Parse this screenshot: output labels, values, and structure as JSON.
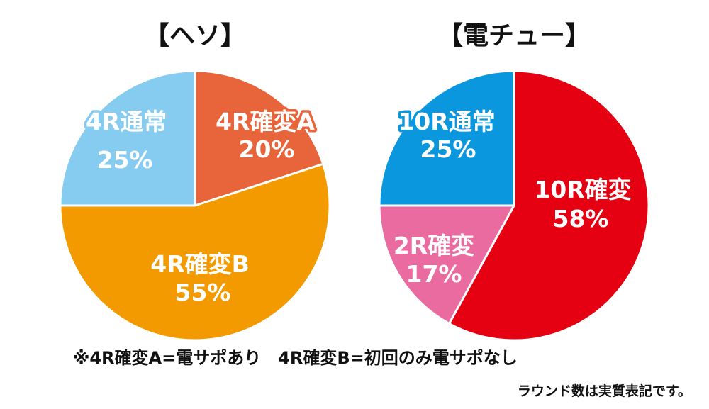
{
  "chart_data": [
    {
      "type": "pie",
      "title": "【ヘソ】",
      "slices": [
        {
          "name": "4R確変A",
          "label": "4R確変A",
          "value": 20,
          "pct_label": "20%",
          "color": "#E8643A",
          "outline": "#E8643A"
        },
        {
          "name": "4R確変B",
          "label": "4R確変B",
          "value": 55,
          "pct_label": "55%",
          "color": "#F29A00",
          "outline": "#F29A00"
        },
        {
          "name": "4R通常",
          "label": "4R通常",
          "value": 25,
          "pct_label": "25%",
          "color": "#86CBF0",
          "outline": "#86CBF0"
        }
      ]
    },
    {
      "type": "pie",
      "title": "【電チュー】",
      "slices": [
        {
          "name": "10R確変",
          "label": "10R確変",
          "value": 58,
          "pct_label": "58%",
          "color": "#E50012",
          "outline": "#E50012"
        },
        {
          "name": "2R確変",
          "label": "2R確変",
          "value": 17,
          "pct_label": "17%",
          "color": "#EA6BA0",
          "outline": "#EA6BA0"
        },
        {
          "name": "10R通常",
          "label": "10R通常",
          "value": 25,
          "pct_label": "25%",
          "color": "#0A97DE",
          "outline": "#0A97DE"
        }
      ]
    }
  ],
  "notes": {
    "line1": "※4R確変A=電サポあり　4R確変B=初回のみ電サポなし",
    "line2": "ラウンド数は実質表記です。"
  },
  "colors": {
    "separator": "#ffffff",
    "text": "#111111"
  }
}
